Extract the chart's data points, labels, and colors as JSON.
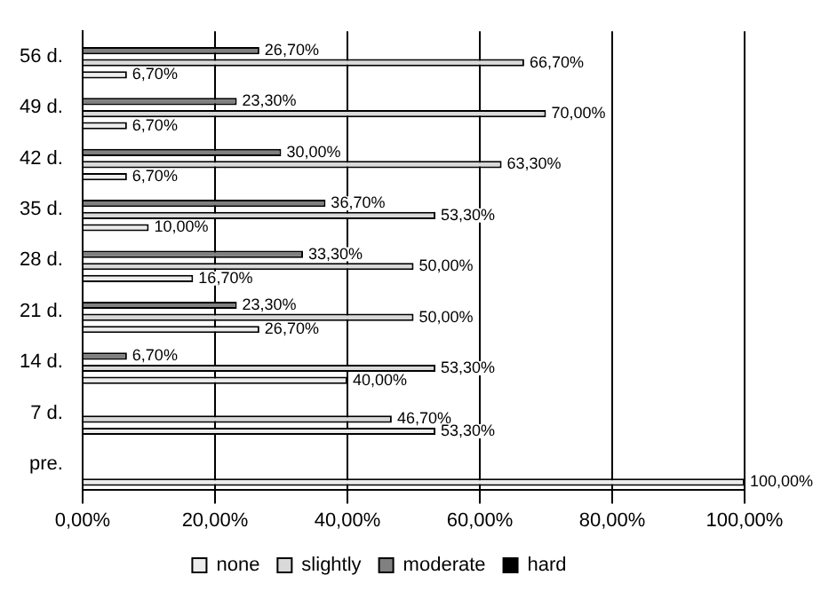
{
  "chart_data": {
    "type": "bar",
    "orientation": "horizontal",
    "categories": [
      "56 d.",
      "49 d.",
      "42 d.",
      "35 d.",
      "28 d.",
      "21 d.",
      "14 d.",
      "7 d.",
      "pre."
    ],
    "series": [
      {
        "name": "none",
        "color": "#ececec",
        "values": [
          6.7,
          6.7,
          6.7,
          10.0,
          16.7,
          26.7,
          40.0,
          53.3,
          100
        ],
        "value_labels": [
          "6,70%",
          "6,70%",
          "6,70%",
          "10,00%",
          "16,70%",
          "26,70%",
          "40,00%",
          "53,30%",
          "100,00%"
        ]
      },
      {
        "name": "slightly",
        "color": "#d9d9d9",
        "values": [
          66.7,
          70.0,
          63.3,
          53.3,
          50.0,
          50.0,
          53.3,
          46.7,
          0
        ],
        "value_labels": [
          "66,70%",
          "70,00%",
          "63,30%",
          "53,30%",
          "50,00%",
          "50,00%",
          "53,30%",
          "46,70%",
          null
        ]
      },
      {
        "name": "moderate",
        "color": "#808080",
        "values": [
          26.7,
          23.3,
          30.0,
          36.7,
          33.3,
          23.3,
          6.7,
          0,
          0
        ],
        "value_labels": [
          "26,70%",
          "23,30%",
          "30,00%",
          "36,70%",
          "33,30%",
          "23,30%",
          "6,70%",
          null,
          null
        ]
      },
      {
        "name": "hard",
        "color": "#000000",
        "values": [
          0,
          0,
          0,
          0,
          0,
          0,
          0,
          0,
          0
        ],
        "value_labels": [
          null,
          null,
          null,
          null,
          null,
          null,
          null,
          null,
          null
        ]
      }
    ],
    "xlim": [
      0,
      100
    ],
    "xticks": [
      {
        "value": 0,
        "label": "0,00%"
      },
      {
        "value": 20,
        "label": "20,00%"
      },
      {
        "value": 40,
        "label": "40,00%"
      },
      {
        "value": 60,
        "label": "60,00%"
      },
      {
        "value": 80,
        "label": "80,00%"
      },
      {
        "value": 100,
        "label": "100,00%"
      }
    ],
    "grid": "x",
    "legend": "bottom"
  }
}
